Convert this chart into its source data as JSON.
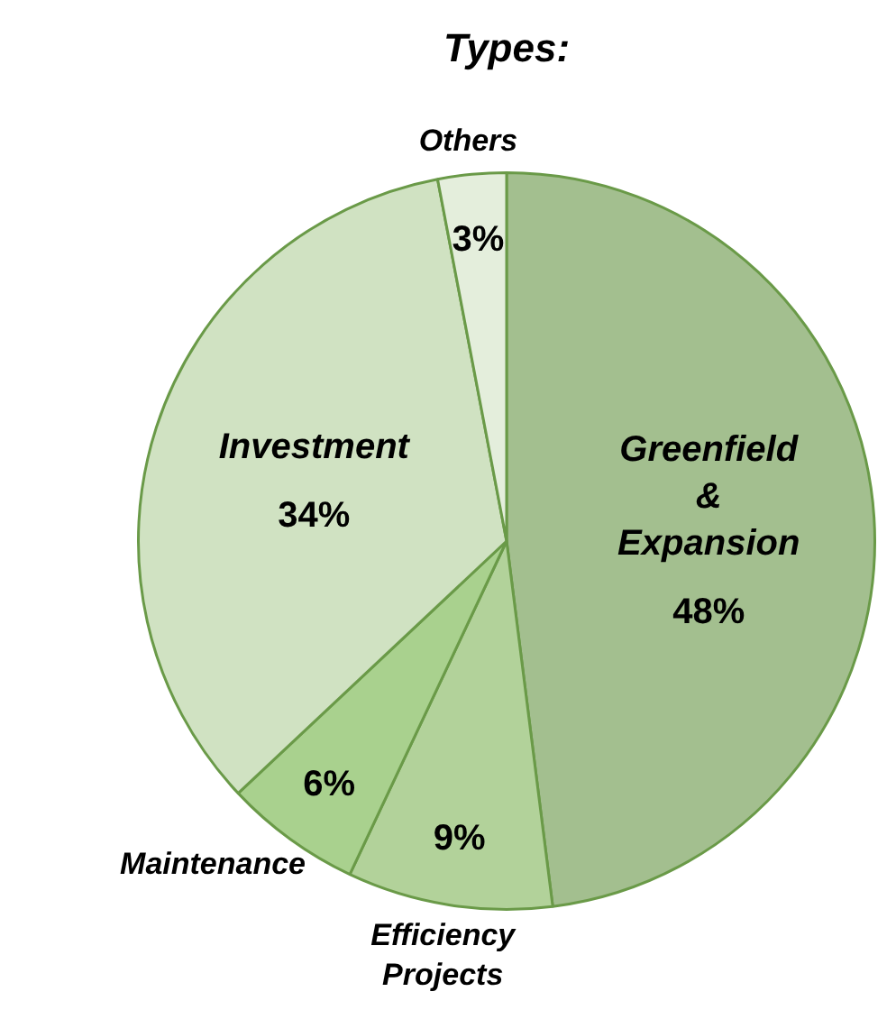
{
  "chart_data": {
    "type": "pie",
    "title": "Types:",
    "categories": [
      "Greenfield & Expansion",
      "Efficiency Projects",
      "Maintenance",
      "Investment",
      "Others"
    ],
    "values": [
      48,
      9,
      6,
      34,
      3
    ],
    "colors": [
      "#a3bf8f",
      "#b2d29a",
      "#a9d18e",
      "#d0e2c2",
      "#e4eedc"
    ],
    "value_labels": [
      "48%",
      "9%",
      "6%",
      "34%",
      "3%"
    ],
    "legend": false
  }
}
